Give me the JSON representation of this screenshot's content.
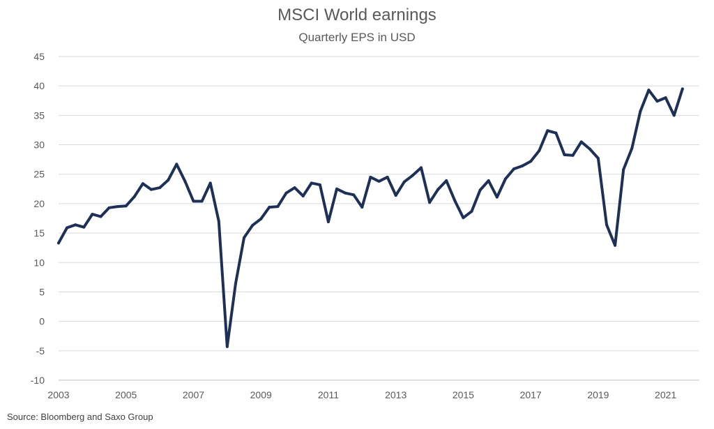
{
  "title": "MSCI World earnings",
  "subtitle": "Quarterly EPS in USD",
  "source": "Source: Bloomberg and Saxo Group",
  "colors": {
    "line": "#1f3057",
    "grid": "#d9d9d9",
    "text": "#595959"
  },
  "chart_data": {
    "type": "line",
    "title": "MSCI World earnings",
    "subtitle": "Quarterly EPS in USD",
    "xlabel": "",
    "ylabel": "",
    "ylim": [
      -10,
      45
    ],
    "yticks": [
      "45",
      "40",
      "35",
      "30",
      "25",
      "20",
      "15",
      "10",
      "5",
      "0",
      "-5",
      "-10"
    ],
    "xticks": [
      "2003",
      "2005",
      "2007",
      "2009",
      "2011",
      "2013",
      "2015",
      "2017",
      "2019",
      "2021"
    ],
    "x_start": 2003.0,
    "x_step": 0.25,
    "series": [
      {
        "name": "Quarterly EPS in USD",
        "values": [
          13.3,
          15.9,
          16.4,
          16.0,
          18.2,
          17.8,
          19.3,
          19.5,
          19.6,
          21.2,
          23.4,
          22.4,
          22.7,
          24.0,
          26.7,
          23.8,
          20.4,
          20.4,
          23.5,
          17.0,
          -4.3,
          6.4,
          14.2,
          16.3,
          17.4,
          19.4,
          19.5,
          21.8,
          22.7,
          21.3,
          23.5,
          23.2,
          16.9,
          22.5,
          21.8,
          21.5,
          19.4,
          24.5,
          23.8,
          24.5,
          21.4,
          23.7,
          24.8,
          26.1,
          20.2,
          22.4,
          23.9,
          20.5,
          17.6,
          18.7,
          22.3,
          23.9,
          21.1,
          24.2,
          25.9,
          26.4,
          27.2,
          29.0,
          32.4,
          32.0,
          28.3,
          28.2,
          30.5,
          29.3,
          27.7,
          16.4,
          12.9,
          25.8,
          29.4,
          35.7,
          39.3,
          37.4,
          38.0,
          35.0,
          39.5
        ]
      }
    ]
  }
}
